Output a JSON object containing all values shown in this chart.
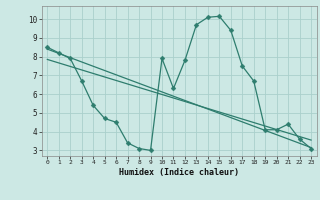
{
  "title": "",
  "xlabel": "Humidex (Indice chaleur)",
  "ylabel": "",
  "background_color": "#cce8e4",
  "grid_color": "#aad0cc",
  "line_color": "#2e7d6e",
  "xlim": [
    -0.5,
    23.5
  ],
  "ylim": [
    2.7,
    10.7
  ],
  "yticks": [
    3,
    4,
    5,
    6,
    7,
    8,
    9,
    10
  ],
  "xticks": [
    0,
    1,
    2,
    3,
    4,
    5,
    6,
    7,
    8,
    9,
    10,
    11,
    12,
    13,
    14,
    15,
    16,
    17,
    18,
    19,
    20,
    21,
    22,
    23
  ],
  "line1_x": [
    0,
    1,
    2,
    3,
    4,
    5,
    6,
    7,
    8,
    9,
    10,
    11,
    12,
    13,
    14,
    15,
    16,
    17,
    18,
    19,
    20,
    21,
    22,
    23
  ],
  "line1_y": [
    8.5,
    8.2,
    7.9,
    6.7,
    5.4,
    4.7,
    4.5,
    3.4,
    3.1,
    3.0,
    7.9,
    6.3,
    7.8,
    9.7,
    10.1,
    10.15,
    9.4,
    7.5,
    6.7,
    4.1,
    4.1,
    4.4,
    3.6,
    3.1
  ],
  "line2_x": [
    0,
    23
  ],
  "line2_y": [
    8.4,
    3.15
  ],
  "line3_x": [
    0,
    23
  ],
  "line3_y": [
    7.85,
    3.55
  ],
  "markersize": 2.5,
  "linewidth": 0.9
}
